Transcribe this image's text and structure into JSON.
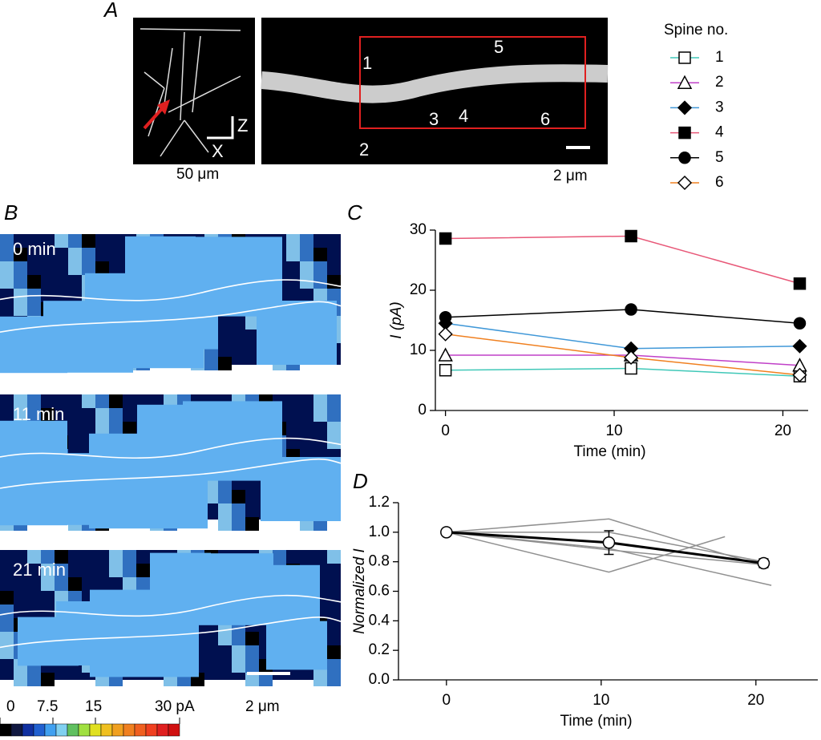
{
  "figure": {
    "panel_labels": [
      "A",
      "B",
      "C",
      "D"
    ],
    "scale_a_left": "50 μm",
    "scale_a_right": "2 μm",
    "axis_z": "Z",
    "axis_x": "X",
    "spine_labels": [
      "1",
      "2",
      "3",
      "4",
      "5",
      "6"
    ],
    "times": [
      "0 min",
      "11 min",
      "21 min"
    ],
    "colorbar_labels": [
      "0",
      "7.5",
      "15",
      "30 pA"
    ],
    "scale_b": "2 μm"
  },
  "chart_data": [
    {
      "type": "line",
      "xlabel": "Time (min)",
      "ylabel": "I (pA)",
      "legend_title": "Spine no.",
      "xlim": [
        -0.6,
        21.5
      ],
      "ylim": [
        0,
        30
      ],
      "xticks": [
        0,
        10,
        20
      ],
      "yticks": [
        0,
        10,
        20,
        30
      ],
      "x": [
        0,
        11,
        21
      ],
      "series": [
        {
          "name": "1",
          "color": "#40c8b8",
          "marker": "square",
          "filled": false,
          "values": [
            6.7,
            7.0,
            5.7
          ]
        },
        {
          "name": "2",
          "color": "#c040c8",
          "marker": "triangle",
          "filled": false,
          "values": [
            9.2,
            9.2,
            7.5
          ]
        },
        {
          "name": "3",
          "color": "#4098d8",
          "marker": "diamond",
          "filled": true,
          "values": [
            14.5,
            10.3,
            10.7
          ]
        },
        {
          "name": "4",
          "color": "#e85878",
          "marker": "square",
          "filled": true,
          "values": [
            28.6,
            29.0,
            21.1
          ]
        },
        {
          "name": "5",
          "color": "#000000",
          "marker": "circle",
          "filled": true,
          "values": [
            15.5,
            16.8,
            14.5
          ]
        },
        {
          "name": "6",
          "color": "#f08020",
          "marker": "diamond",
          "filled": false,
          "values": [
            12.7,
            8.8,
            5.9
          ]
        }
      ]
    },
    {
      "type": "line",
      "xlabel": "Time (min)",
      "ylabel": "Normalized I",
      "xlim": [
        -3.1,
        24
      ],
      "ylim": [
        0,
        1.2
      ],
      "xticks": [
        0,
        10,
        20
      ],
      "yticks": [
        {
          "value": 0,
          "label": "0.0"
        },
        0.2,
        0.4,
        0.6,
        0.8,
        {
          "value": 1,
          "label": "1.0"
        },
        1.2
      ],
      "x": [
        0,
        10.5,
        20.5
      ],
      "series": [
        {
          "color": "#909090",
          "values": [
            1,
            1.09,
            0.77
          ]
        },
        {
          "color": "#909090",
          "values": [
            1,
            1.0,
            0.8
          ]
        },
        {
          "color": "#909090",
          "x": [
            0,
            10.5,
            18
          ],
          "values": [
            1,
            0.73,
            0.97
          ]
        },
        {
          "color": "#909090",
          "x": [
            0,
            10.5,
            21
          ],
          "values": [
            1,
            0.89,
            0.64
          ]
        },
        {
          "color": "#909090",
          "values": [
            1,
            0.88,
            0.78
          ]
        },
        {
          "color": "#000000",
          "marker": "circle",
          "filled": false,
          "width": 3,
          "values": [
            1,
            0.93,
            0.79
          ],
          "errors": [
            0,
            0.08,
            0.03
          ]
        }
      ]
    }
  ]
}
